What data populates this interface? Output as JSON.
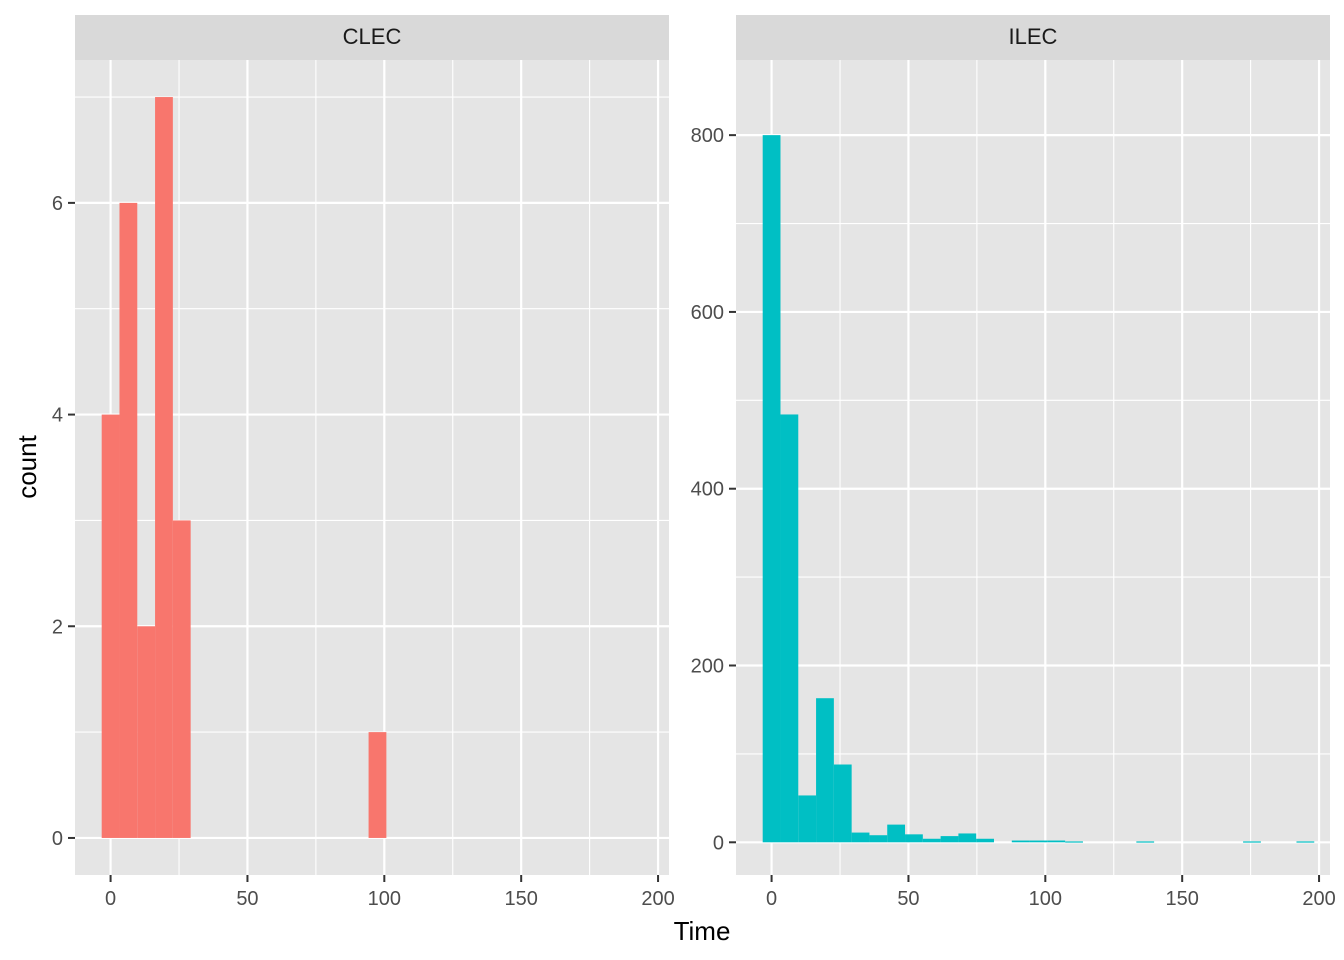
{
  "chart_data": {
    "type": "bar",
    "subtype": "faceted-histogram",
    "xlabel": "Time",
    "ylabel": "count",
    "bin_width": 6.5,
    "panel_background": "#e5e5e5",
    "strip_background": "#d9d9d9",
    "grid_color": "#ffffff",
    "facets": [
      {
        "name": "CLEC",
        "color": "#F8766D",
        "xlim": [
          -13,
          204
        ],
        "ylim": [
          -0.35,
          7.35
        ],
        "x_ticks": [
          0,
          50,
          100,
          150,
          200
        ],
        "x_tick_labels": [
          "0",
          "50",
          "100",
          "150",
          "200"
        ],
        "y_ticks": [
          0,
          2,
          4,
          6
        ],
        "y_tick_labels": [
          "0",
          "2",
          "4",
          "6"
        ],
        "x_minor": [
          25,
          75,
          125,
          175
        ],
        "y_minor": [
          1,
          3,
          5,
          7
        ],
        "bins": [
          {
            "x": 0,
            "count": 4
          },
          {
            "x": 6.5,
            "count": 6
          },
          {
            "x": 13,
            "count": 2
          },
          {
            "x": 19.5,
            "count": 7
          },
          {
            "x": 26,
            "count": 3
          },
          {
            "x": 97.5,
            "count": 1
          }
        ]
      },
      {
        "name": "ILEC",
        "color": "#00BFC4",
        "xlim": [
          -13,
          204
        ],
        "ylim": [
          -37,
          885
        ],
        "x_ticks": [
          0,
          50,
          100,
          150,
          200
        ],
        "x_tick_labels": [
          "0",
          "50",
          "100",
          "150",
          "200"
        ],
        "y_ticks": [
          0,
          200,
          400,
          600,
          800
        ],
        "y_tick_labels": [
          "0",
          "200",
          "400",
          "600",
          "800"
        ],
        "x_minor": [
          25,
          75,
          125,
          175
        ],
        "y_minor": [
          100,
          300,
          500,
          700
        ],
        "bins": [
          {
            "x": 0,
            "count": 800
          },
          {
            "x": 6.5,
            "count": 484
          },
          {
            "x": 13,
            "count": 53
          },
          {
            "x": 19.5,
            "count": 163
          },
          {
            "x": 26,
            "count": 88
          },
          {
            "x": 32.5,
            "count": 11
          },
          {
            "x": 39,
            "count": 8
          },
          {
            "x": 45.5,
            "count": 20
          },
          {
            "x": 52,
            "count": 9
          },
          {
            "x": 58.5,
            "count": 4
          },
          {
            "x": 65,
            "count": 7
          },
          {
            "x": 71.5,
            "count": 10
          },
          {
            "x": 78,
            "count": 4
          },
          {
            "x": 91,
            "count": 2
          },
          {
            "x": 97.5,
            "count": 2
          },
          {
            "x": 104,
            "count": 2
          },
          {
            "x": 110.5,
            "count": 1
          },
          {
            "x": 136.5,
            "count": 1
          },
          {
            "x": 175.5,
            "count": 1
          },
          {
            "x": 195,
            "count": 1
          }
        ]
      }
    ]
  }
}
